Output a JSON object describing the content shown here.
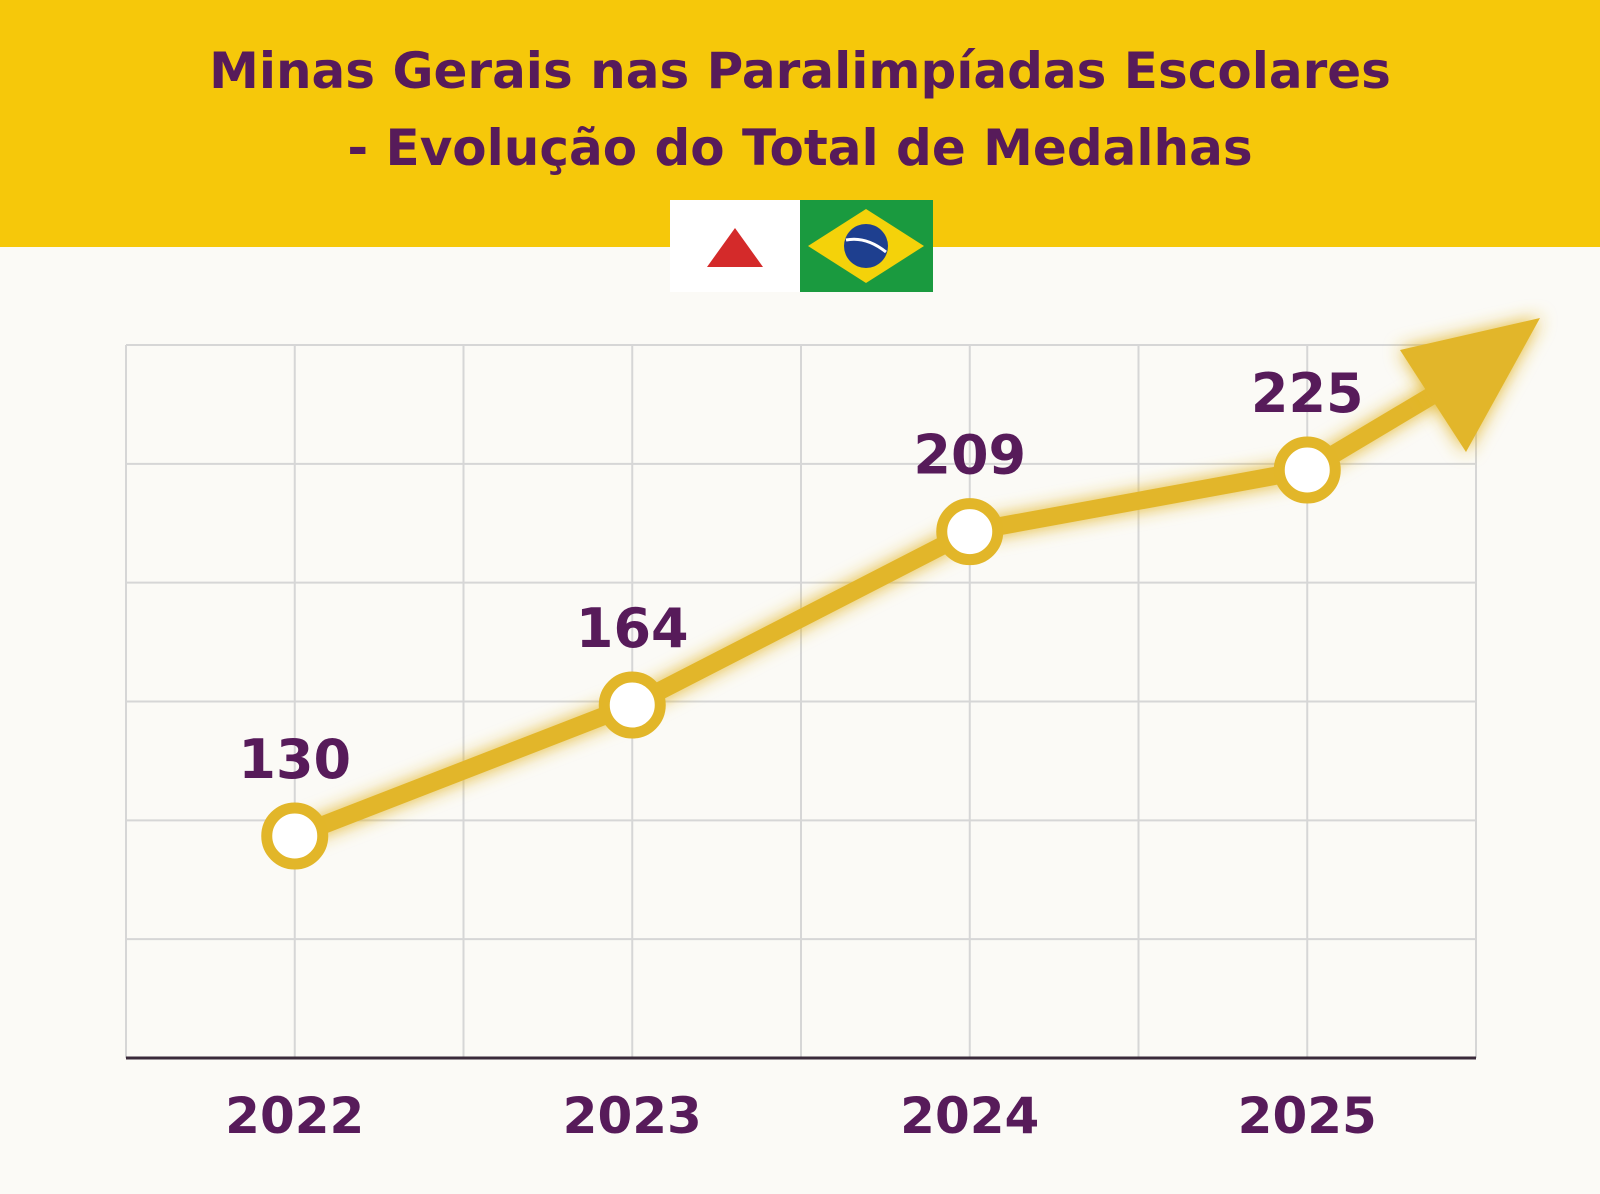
{
  "chart_data": {
    "type": "line",
    "title": [
      "Minas Gerais nas Paralimpíadas Escolares",
      "- Evolução do Total de Medalhas"
    ],
    "categories": [
      "2022",
      "2023",
      "2024",
      "2025"
    ],
    "values": [
      130,
      164,
      209,
      225
    ],
    "color": "#e2b629",
    "grid": true
  }
}
